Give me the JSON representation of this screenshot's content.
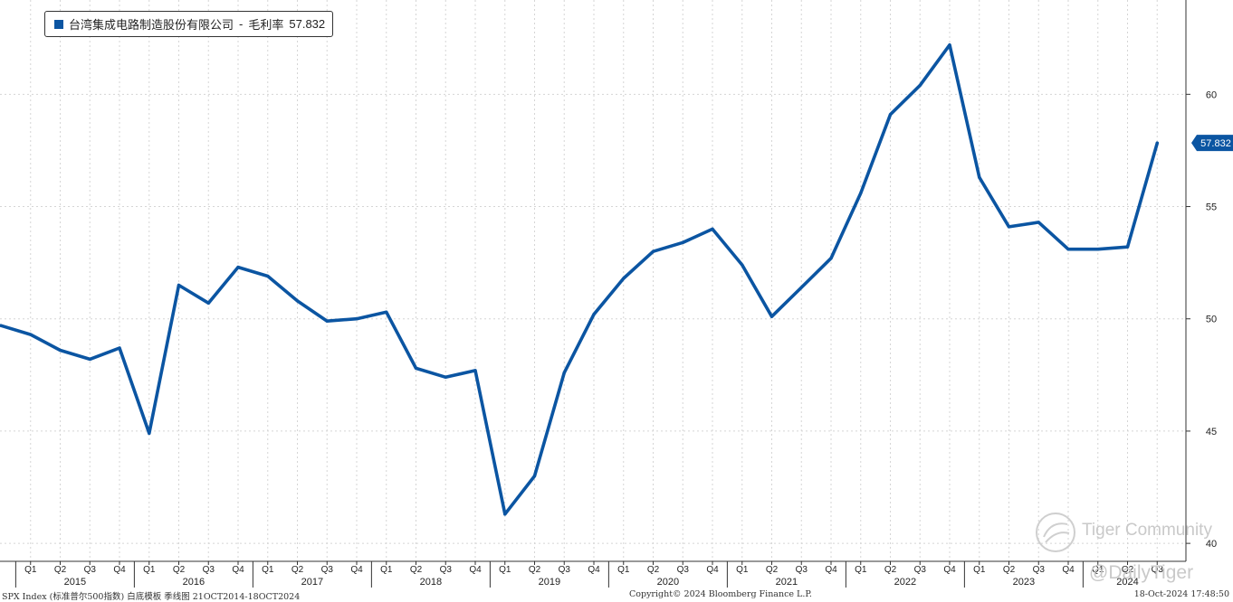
{
  "legend": {
    "name": "台湾集成电路制造股份有限公司",
    "separator": "-",
    "metric": "毛利率",
    "last_value": "57.832"
  },
  "colors": {
    "line": "#0b55a2",
    "last_tag_bg": "#0b55a2",
    "grid": "#d5d5d5",
    "axis": "#333333"
  },
  "chart_data": {
    "type": "line",
    "series": [
      {
        "name": "台湾集成电路制造股份有限公司 - 毛利率",
        "x": [
          "2014Q4",
          "2015Q1",
          "2015Q2",
          "2015Q3",
          "2015Q4",
          "2016Q1",
          "2016Q2",
          "2016Q3",
          "2016Q4",
          "2017Q1",
          "2017Q2",
          "2017Q3",
          "2017Q4",
          "2018Q1",
          "2018Q2",
          "2018Q3",
          "2018Q4",
          "2019Q1",
          "2019Q2",
          "2019Q3",
          "2019Q4",
          "2020Q1",
          "2020Q2",
          "2020Q3",
          "2020Q4",
          "2021Q1",
          "2021Q2",
          "2021Q3",
          "2021Q4",
          "2022Q1",
          "2022Q2",
          "2022Q3",
          "2022Q4",
          "2023Q1",
          "2023Q2",
          "2023Q3",
          "2023Q4",
          "2024Q1",
          "2024Q2",
          "2024Q3"
        ],
        "values": [
          49.7,
          49.3,
          48.6,
          48.2,
          48.7,
          44.9,
          51.5,
          50.7,
          52.3,
          51.9,
          50.8,
          49.9,
          50.0,
          50.3,
          47.8,
          47.4,
          47.7,
          41.3,
          43.0,
          47.6,
          50.2,
          51.8,
          53.0,
          53.4,
          54.0,
          52.4,
          50.1,
          51.4,
          52.7,
          55.6,
          59.1,
          60.4,
          62.2,
          56.3,
          54.1,
          54.3,
          53.1,
          53.1,
          53.2,
          57.832
        ]
      }
    ],
    "x_quarter_ticks": [
      "Q1",
      "Q2",
      "Q3",
      "Q4",
      "Q1",
      "Q2",
      "Q3",
      "Q4",
      "Q1",
      "Q2",
      "Q3",
      "Q4",
      "Q1",
      "Q2",
      "Q3",
      "Q4",
      "Q1",
      "Q2",
      "Q3",
      "Q4",
      "Q1",
      "Q2",
      "Q3",
      "Q4",
      "Q1",
      "Q2",
      "Q3",
      "Q4",
      "Q1",
      "Q2",
      "Q3",
      "Q4",
      "Q1",
      "Q2",
      "Q3",
      "Q4",
      "Q1",
      "Q2",
      "Q3"
    ],
    "x_years": [
      "2015",
      "2016",
      "2017",
      "2018",
      "2019",
      "2020",
      "2021",
      "2022",
      "2023",
      "2024"
    ],
    "y_ticks": [
      40,
      45,
      50,
      55,
      60
    ],
    "ylim": [
      39.2,
      64.2
    ],
    "y_axis_side": "right",
    "grid": true,
    "legend_position": "top-left",
    "last_value_label": "57.832"
  },
  "footer": {
    "left": "SPX Index (标准普尔500指数) 白底模板  季线图 21OCT2014-18OCT2024",
    "center": "Copyright© 2024 Bloomberg Finance L.P.",
    "right": "18-Oct-2024 17:48:50"
  },
  "watermark": {
    "brand": "Tiger Community",
    "handle": "@DailyTiger"
  }
}
